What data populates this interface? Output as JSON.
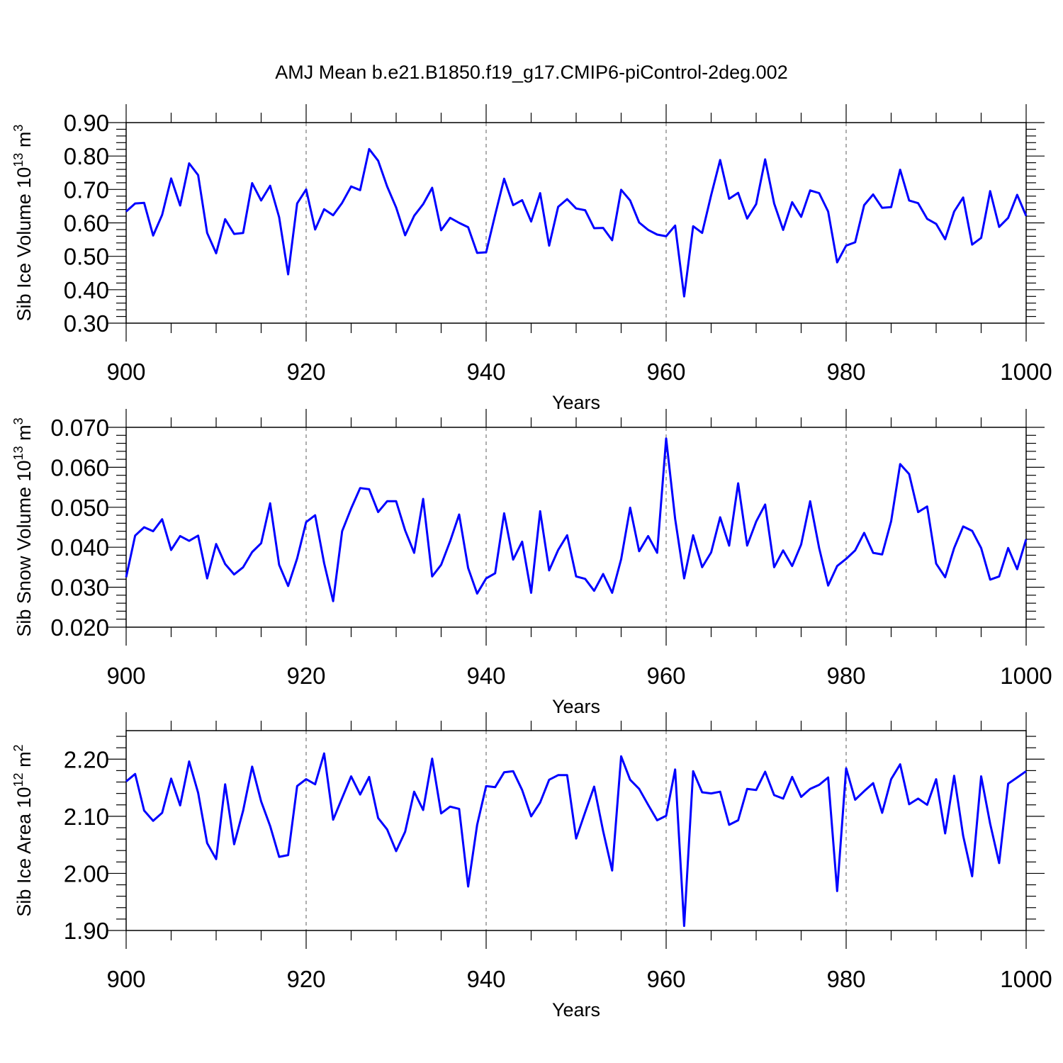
{
  "title": "AMJ Mean b.e21.B1850.f19_g17.CMIP6-piControl-2deg.002",
  "line_color": "#0000ff",
  "chart_data": [
    {
      "type": "line",
      "ylabel": {
        "text": "Sib Ice Volume 10",
        "exp1": "13",
        "unit": " m",
        "exp2": "3"
      },
      "xlabel": "Years",
      "xlim": [
        900,
        1000
      ],
      "ylim": [
        0.3,
        0.9
      ],
      "yticks": [
        0.3,
        0.4,
        0.5,
        0.6,
        0.7,
        0.8,
        0.9
      ],
      "ytick_labels": [
        "0.30",
        "0.40",
        "0.50",
        "0.60",
        "0.70",
        "0.80",
        "0.90"
      ],
      "xticks": [
        900,
        920,
        940,
        960,
        980,
        1000
      ],
      "xtick_labels": [
        "900",
        "920",
        "940",
        "960",
        "980",
        "1000"
      ],
      "grid": "dashed vertical at 920, 940, 960, 980",
      "x_start": 900,
      "values": [
        0.634,
        0.658,
        0.66,
        0.562,
        0.624,
        0.733,
        0.652,
        0.778,
        0.743,
        0.57,
        0.509,
        0.611,
        0.567,
        0.57,
        0.719,
        0.667,
        0.711,
        0.617,
        0.446,
        0.658,
        0.7,
        0.58,
        0.641,
        0.623,
        0.66,
        0.709,
        0.698,
        0.821,
        0.786,
        0.709,
        0.646,
        0.563,
        0.621,
        0.656,
        0.705,
        0.578,
        0.615,
        0.6,
        0.587,
        0.51,
        0.512,
        0.624,
        0.732,
        0.653,
        0.668,
        0.604,
        0.689,
        0.532,
        0.648,
        0.671,
        0.643,
        0.638,
        0.584,
        0.585,
        0.548,
        0.699,
        0.667,
        0.601,
        0.579,
        0.565,
        0.56,
        0.592,
        0.38,
        0.59,
        0.57,
        0.683,
        0.788,
        0.672,
        0.69,
        0.613,
        0.656,
        0.79,
        0.658,
        0.579,
        0.662,
        0.618,
        0.697,
        0.689,
        0.634,
        0.482,
        0.532,
        0.542,
        0.653,
        0.685,
        0.645,
        0.647,
        0.759,
        0.667,
        0.659,
        0.612,
        0.597,
        0.551,
        0.634,
        0.676,
        0.535,
        0.555,
        0.695,
        0.588,
        0.615,
        0.684,
        0.621
      ]
    },
    {
      "type": "line",
      "ylabel": {
        "text": "Sib Snow Volume 10",
        "exp1": "13",
        "unit": " m",
        "exp2": "3"
      },
      "xlabel": "Years",
      "xlim": [
        900,
        1000
      ],
      "ylim": [
        0.02,
        0.07
      ],
      "yticks": [
        0.02,
        0.03,
        0.04,
        0.05,
        0.06,
        0.07
      ],
      "ytick_labels": [
        "0.020",
        "0.030",
        "0.040",
        "0.050",
        "0.060",
        "0.070"
      ],
      "xticks": [
        900,
        920,
        940,
        960,
        980,
        1000
      ],
      "xtick_labels": [
        "900",
        "920",
        "940",
        "960",
        "980",
        "1000"
      ],
      "grid": "dashed vertical at 920, 940, 960, 980",
      "x_start": 900,
      "values": [
        0.0325,
        0.0429,
        0.045,
        0.044,
        0.047,
        0.0393,
        0.0428,
        0.0416,
        0.0429,
        0.0322,
        0.0408,
        0.0358,
        0.0332,
        0.035,
        0.0388,
        0.041,
        0.051,
        0.0356,
        0.0303,
        0.0372,
        0.0463,
        0.048,
        0.036,
        0.0265,
        0.044,
        0.0497,
        0.0548,
        0.0545,
        0.0488,
        0.0515,
        0.0515,
        0.0442,
        0.0386,
        0.0521,
        0.0327,
        0.0356,
        0.0415,
        0.0482,
        0.0348,
        0.0284,
        0.0322,
        0.0335,
        0.0485,
        0.0369,
        0.0414,
        0.0286,
        0.049,
        0.0342,
        0.0393,
        0.043,
        0.0327,
        0.0321,
        0.0291,
        0.0333,
        0.0286,
        0.037,
        0.0499,
        0.039,
        0.0428,
        0.0386,
        0.0672,
        0.0471,
        0.0322,
        0.043,
        0.035,
        0.0387,
        0.0475,
        0.0404,
        0.056,
        0.0404,
        0.0464,
        0.0507,
        0.035,
        0.0392,
        0.0353,
        0.0407,
        0.0515,
        0.0398,
        0.0304,
        0.0353,
        0.0371,
        0.0392,
        0.0436,
        0.0386,
        0.0382,
        0.0465,
        0.0608,
        0.0583,
        0.0488,
        0.0502,
        0.0359,
        0.0325,
        0.0398,
        0.0452,
        0.0441,
        0.0398,
        0.0319,
        0.0327,
        0.0398,
        0.0345,
        0.042
      ]
    },
    {
      "type": "line",
      "ylabel": {
        "text": "Sib Ice Area 10",
        "exp1": "12",
        "unit": " m",
        "exp2": "2"
      },
      "xlabel": "Years",
      "xlim": [
        900,
        1000
      ],
      "ylim": [
        1.9,
        2.25
      ],
      "yticks": [
        1.9,
        2.0,
        2.1,
        2.2
      ],
      "ytick_labels": [
        "1.90",
        "2.00",
        "2.10",
        "2.20"
      ],
      "xticks": [
        900,
        920,
        940,
        960,
        980,
        1000
      ],
      "xtick_labels": [
        "900",
        "920",
        "940",
        "960",
        "980",
        "1000"
      ],
      "grid": "dashed vertical at 920, 940, 960, 980",
      "x_start": 900,
      "values": [
        2.161,
        2.174,
        2.11,
        2.092,
        2.106,
        2.166,
        2.119,
        2.196,
        2.141,
        2.053,
        2.025,
        2.156,
        2.051,
        2.11,
        2.187,
        2.126,
        2.083,
        2.029,
        2.032,
        2.153,
        2.165,
        2.156,
        2.21,
        2.094,
        2.132,
        2.17,
        2.138,
        2.169,
        2.097,
        2.077,
        2.039,
        2.073,
        2.143,
        2.111,
        2.201,
        2.105,
        2.117,
        2.113,
        1.977,
        2.085,
        2.153,
        2.151,
        2.177,
        2.179,
        2.146,
        2.1,
        2.124,
        2.164,
        2.172,
        2.172,
        2.061,
        2.107,
        2.152,
        2.074,
        2.005,
        2.205,
        2.164,
        2.148,
        2.12,
        2.093,
        2.101,
        2.182,
        1.908,
        2.179,
        2.142,
        2.14,
        2.143,
        2.085,
        2.093,
        2.148,
        2.146,
        2.178,
        2.137,
        2.131,
        2.169,
        2.134,
        2.148,
        2.155,
        2.168,
        1.969,
        2.184,
        2.129,
        2.144,
        2.158,
        2.106,
        2.165,
        2.191,
        2.121,
        2.131,
        2.12,
        2.165,
        2.07,
        2.171,
        2.066,
        1.995,
        2.17,
        2.087,
        2.018,
        2.157,
        2.168,
        2.179
      ]
    }
  ]
}
